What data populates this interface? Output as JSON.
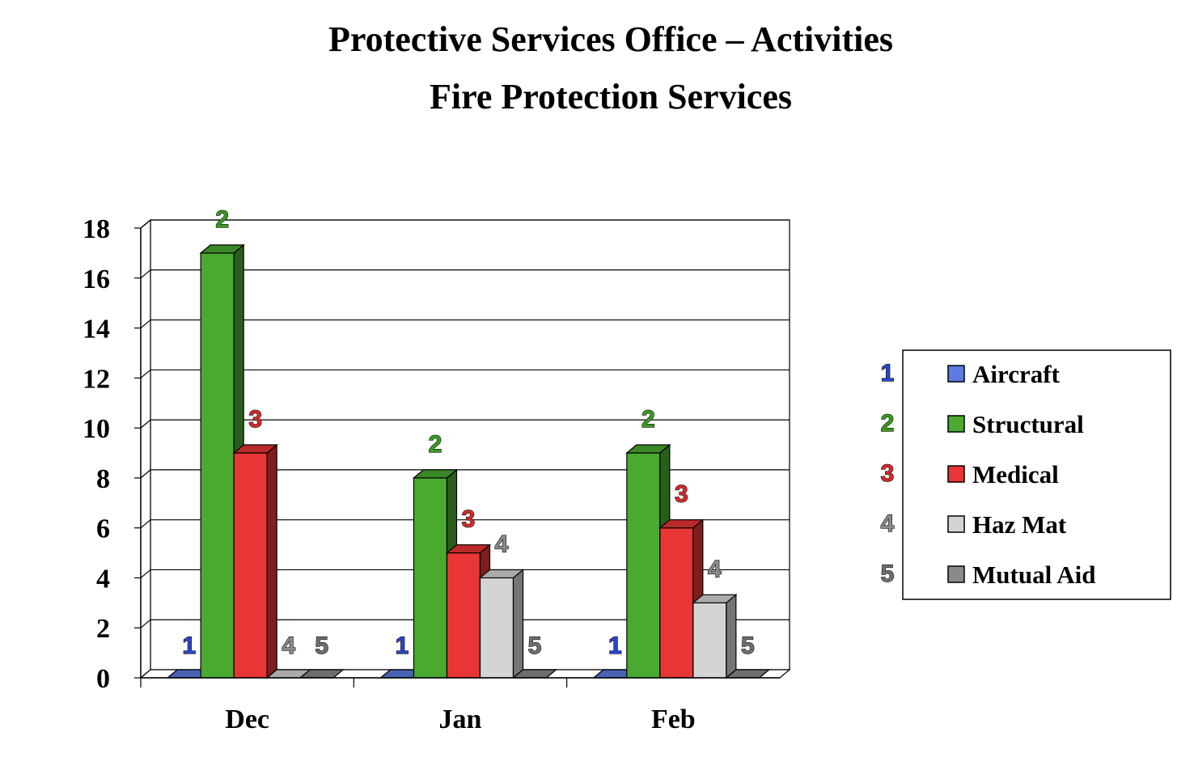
{
  "chart_data": {
    "type": "bar",
    "title": "Protective Services Office – Activities",
    "subtitle": "Fire Protection Services",
    "categories": [
      "Dec",
      "Jan",
      "Feb"
    ],
    "ylim": [
      0,
      18
    ],
    "yticks": [
      "0",
      "2",
      "4",
      "6",
      "8",
      "10",
      "12",
      "14",
      "16",
      "18"
    ],
    "grid": true,
    "legend_position": "right",
    "series": [
      {
        "name": "Aircraft",
        "label": "1",
        "values": [
          0,
          0,
          0
        ],
        "color": "#5b7be0",
        "label_color": "#2b45c8"
      },
      {
        "name": "Structural",
        "label": "2",
        "values": [
          17,
          8,
          9
        ],
        "color": "#4aaa2f",
        "label_color": "#3a9a22"
      },
      {
        "name": "Medical",
        "label": "3",
        "values": [
          9,
          5,
          6
        ],
        "color": "#e83535",
        "label_color": "#d42a2a"
      },
      {
        "name": "Haz Mat",
        "label": "4",
        "values": [
          0,
          4,
          3
        ],
        "color": "#d4d4d4",
        "label_color": "#8a8a8a"
      },
      {
        "name": "Mutual Aid",
        "label": "5",
        "values": [
          0,
          0,
          0
        ],
        "color": "#8a8a8a",
        "label_color": "#6f6f6f"
      }
    ]
  }
}
